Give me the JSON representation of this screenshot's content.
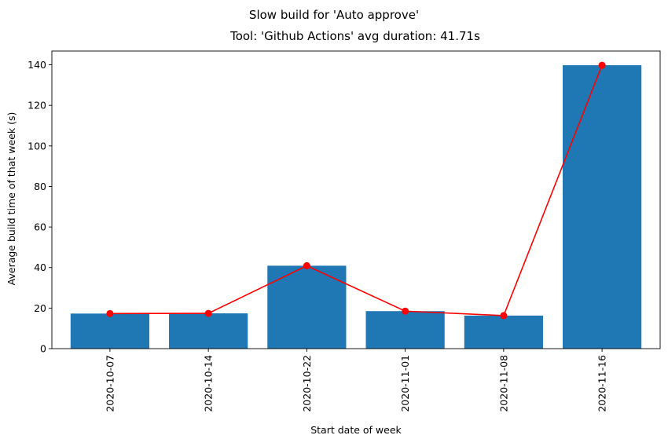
{
  "figure": {
    "suptitle": "Slow build for 'Auto approve'"
  },
  "chart_data": {
    "type": "bar",
    "title": "Tool: 'Github Actions' avg duration: 41.71s",
    "xlabel": "Start date of week",
    "ylabel": "Average build time of that week (s)",
    "categories": [
      "2020-10-07",
      "2020-10-14",
      "2020-10-22",
      "2020-11-01",
      "2020-11-08",
      "2020-11-16"
    ],
    "series": [
      {
        "type": "bar",
        "color": "#1f77b4",
        "values": [
          17.3,
          17.4,
          40.9,
          18.5,
          16.3,
          139.8
        ]
      },
      {
        "type": "line",
        "color": "#ff0000",
        "marker": "circle",
        "values": [
          17.3,
          17.4,
          40.9,
          18.5,
          16.3,
          139.8
        ]
      }
    ],
    "ylim": [
      0,
      146.8
    ],
    "yticks": [
      0,
      20,
      40,
      60,
      80,
      100,
      120,
      140
    ],
    "grid": false,
    "legend": "none"
  }
}
